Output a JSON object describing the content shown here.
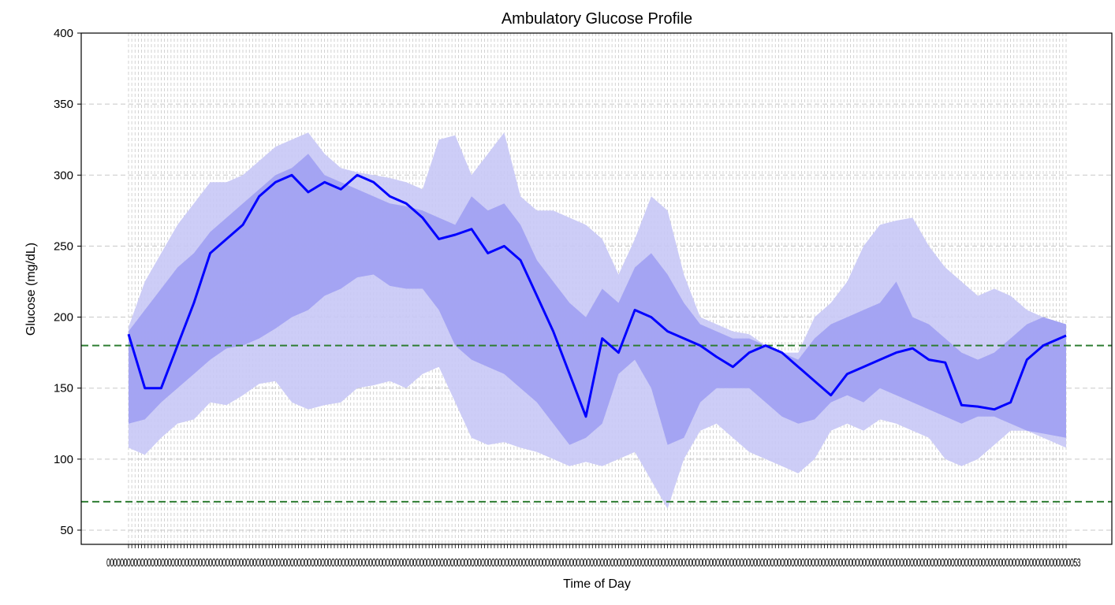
{
  "chart_data": {
    "type": "area",
    "title": "Ambulatory Glucose Profile",
    "xlabel": "Time of Day",
    "ylabel": "Glucose (mg/dL)",
    "ylim": [
      40,
      400
    ],
    "yticks": [
      50,
      100,
      150,
      200,
      250,
      300,
      350,
      400
    ],
    "grid": true,
    "x_tick_count": 288,
    "x_tick_text": "0000000000000000000000000000000000000000000000000000000000000000000000000000000000000000000000000000000000000000000000000000000000000000000000000000000000000000000000000000000000000000000000000000000000000000000000000000000000000000000000000000000000000000000000000000000000000000000053",
    "x_start_label": "00",
    "x_end_label": "53",
    "reference_lines": [
      {
        "y": 180,
        "color": "#2e7d32"
      },
      {
        "y": 70,
        "color": "#2e7d32"
      }
    ],
    "colors": {
      "median": "#0000ff",
      "outer_band": "#c8c8f6",
      "inner_band": "#a0a0f2",
      "grid": "#c8c8c8"
    },
    "profile": {
      "x_index": [
        0,
        5,
        10,
        15,
        20,
        25,
        30,
        35,
        40,
        45,
        50,
        55,
        60,
        65,
        70,
        75,
        80,
        85,
        90,
        95,
        100,
        105,
        110,
        115,
        120,
        125,
        130,
        135,
        140,
        145,
        150,
        155,
        160,
        165,
        170,
        175,
        180,
        185,
        190,
        195,
        200,
        205,
        210,
        215,
        220,
        225,
        230,
        235,
        240,
        245,
        250,
        255,
        260,
        265,
        270,
        275,
        280,
        287
      ],
      "p5": [
        108,
        103,
        115,
        125,
        128,
        140,
        138,
        145,
        153,
        155,
        140,
        135,
        138,
        140,
        150,
        152,
        155,
        150,
        160,
        165,
        140,
        115,
        110,
        112,
        108,
        105,
        100,
        95,
        98,
        95,
        100,
        105,
        85,
        65,
        100,
        120,
        125,
        115,
        105,
        100,
        95,
        90,
        100,
        120,
        125,
        120,
        128,
        125,
        120,
        115,
        100,
        95,
        100,
        110,
        120,
        120,
        115,
        108
      ],
      "p25": [
        125,
        128,
        140,
        150,
        160,
        170,
        178,
        180,
        185,
        192,
        200,
        205,
        215,
        220,
        228,
        230,
        222,
        220,
        220,
        205,
        180,
        170,
        165,
        160,
        150,
        140,
        125,
        110,
        115,
        125,
        160,
        170,
        150,
        110,
        115,
        140,
        150,
        150,
        150,
        140,
        130,
        125,
        128,
        140,
        145,
        140,
        150,
        145,
        140,
        135,
        130,
        125,
        130,
        130,
        125,
        120,
        118,
        115
      ],
      "p50": [
        188,
        150,
        150,
        180,
        210,
        245,
        255,
        265,
        285,
        295,
        300,
        288,
        295,
        290,
        300,
        295,
        285,
        280,
        270,
        255,
        258,
        262,
        245,
        250,
        240,
        215,
        190,
        160,
        130,
        185,
        175,
        205,
        200,
        190,
        185,
        180,
        172,
        165,
        175,
        180,
        175,
        165,
        155,
        145,
        160,
        165,
        170,
        175,
        178,
        170,
        168,
        138,
        137,
        135,
        140,
        170,
        180,
        187
      ],
      "p75": [
        190,
        205,
        220,
        235,
        245,
        260,
        270,
        280,
        290,
        300,
        305,
        315,
        300,
        295,
        290,
        285,
        280,
        278,
        275,
        270,
        265,
        285,
        275,
        280,
        265,
        240,
        225,
        210,
        200,
        220,
        210,
        235,
        245,
        230,
        210,
        195,
        190,
        185,
        185,
        180,
        175,
        170,
        185,
        195,
        200,
        205,
        210,
        225,
        200,
        195,
        185,
        175,
        170,
        175,
        185,
        195,
        200,
        195
      ],
      "p95": [
        193,
        225,
        245,
        265,
        280,
        295,
        295,
        300,
        310,
        320,
        325,
        330,
        315,
        305,
        302,
        300,
        298,
        295,
        290,
        325,
        328,
        300,
        315,
        330,
        285,
        275,
        275,
        270,
        265,
        255,
        230,
        255,
        285,
        275,
        230,
        200,
        195,
        190,
        188,
        180,
        175,
        175,
        200,
        210,
        225,
        250,
        265,
        268,
        270,
        250,
        235,
        225,
        215,
        220,
        215,
        205,
        200,
        195
      ]
    }
  }
}
